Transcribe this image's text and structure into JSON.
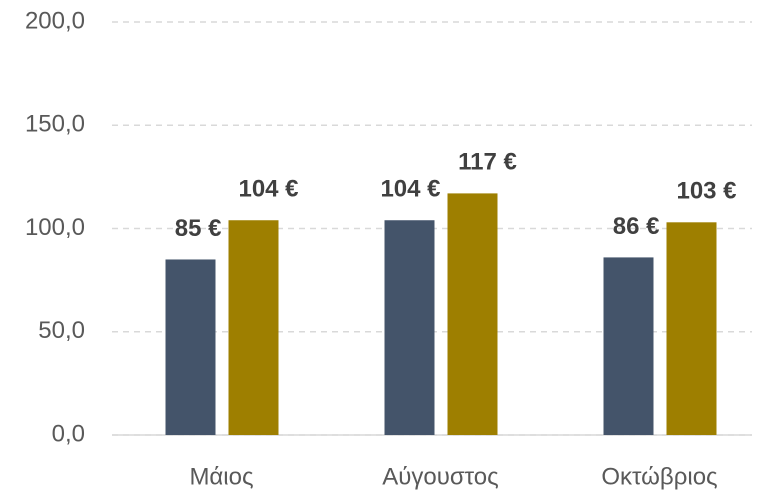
{
  "chart_data": {
    "type": "bar",
    "categories": [
      "Μάιος",
      "Αύγουστος",
      "Οκτώβριος"
    ],
    "series": [
      {
        "color": "#44546a",
        "values": [
          85,
          104,
          86
        ],
        "value_labels": [
          "85 €",
          "104 €",
          "86 €"
        ]
      },
      {
        "color": "#9e7f00",
        "values": [
          104,
          117,
          103
        ],
        "value_labels": [
          "104 €",
          "117 €",
          "103 €"
        ]
      }
    ],
    "ylim": [
      0,
      200
    ],
    "yticks": [
      {
        "value": 0,
        "label": "0,0"
      },
      {
        "value": 50,
        "label": "50,0"
      },
      {
        "value": 100,
        "label": "100,0"
      },
      {
        "value": 150,
        "label": "150,0"
      },
      {
        "value": 200,
        "label": "200,0"
      }
    ],
    "grid": true
  }
}
